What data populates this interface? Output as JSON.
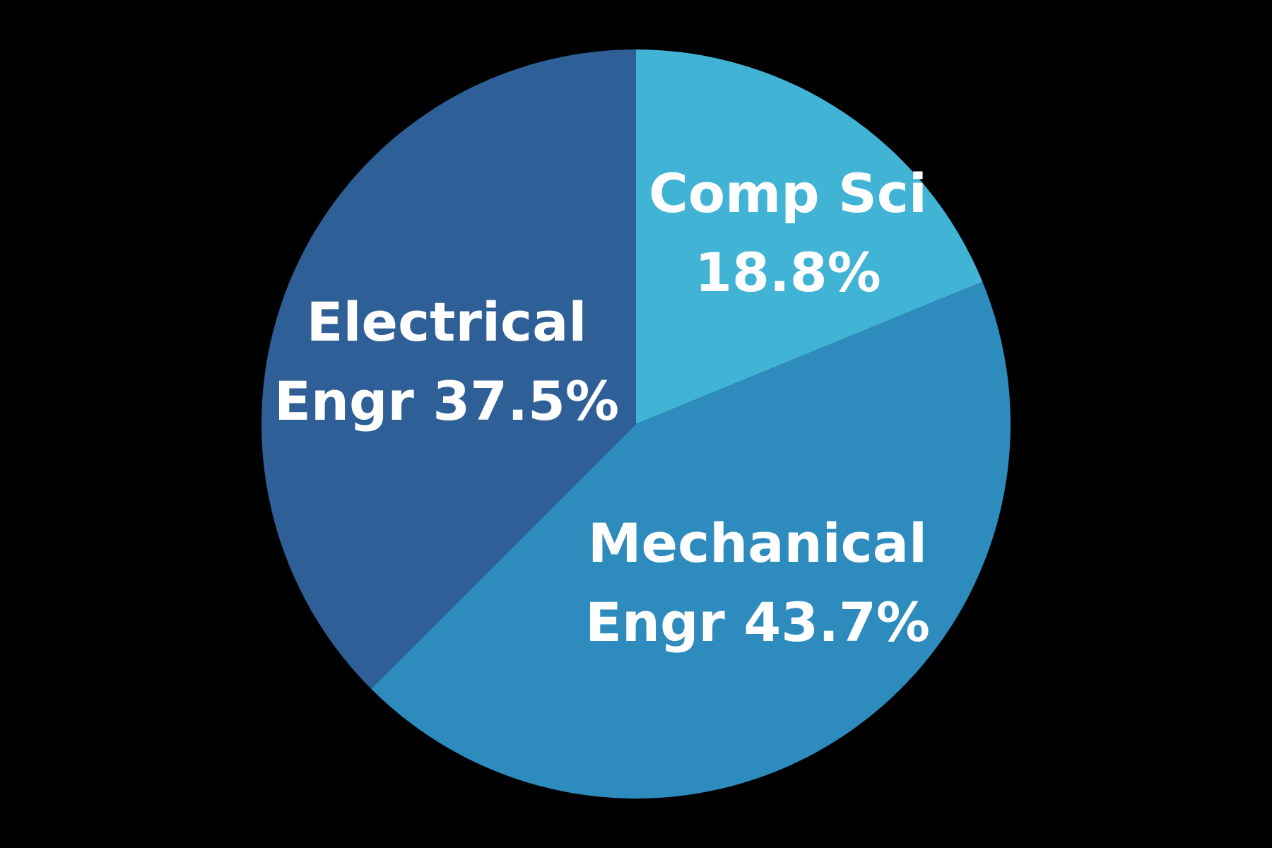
{
  "chart_data": {
    "type": "pie",
    "title": "",
    "slices": [
      {
        "name": "Comp Sci",
        "label_lines": [
          "Comp Sci",
          "18.8%"
        ],
        "value": 18.8,
        "color": "#41b4d6"
      },
      {
        "name": "Mechanical Engr",
        "label_lines": [
          "Mechanical",
          "Engr 43.7%"
        ],
        "value": 43.7,
        "color": "#2e8bbd"
      },
      {
        "name": "Electrical Engr",
        "label_lines": [
          "Electrical",
          "Engr 37.5%"
        ],
        "value": 37.5,
        "color": "#2e6097"
      }
    ],
    "start_angle": "12 o'clock",
    "direction": "clockwise",
    "legend": "none",
    "background": "#000000"
  }
}
